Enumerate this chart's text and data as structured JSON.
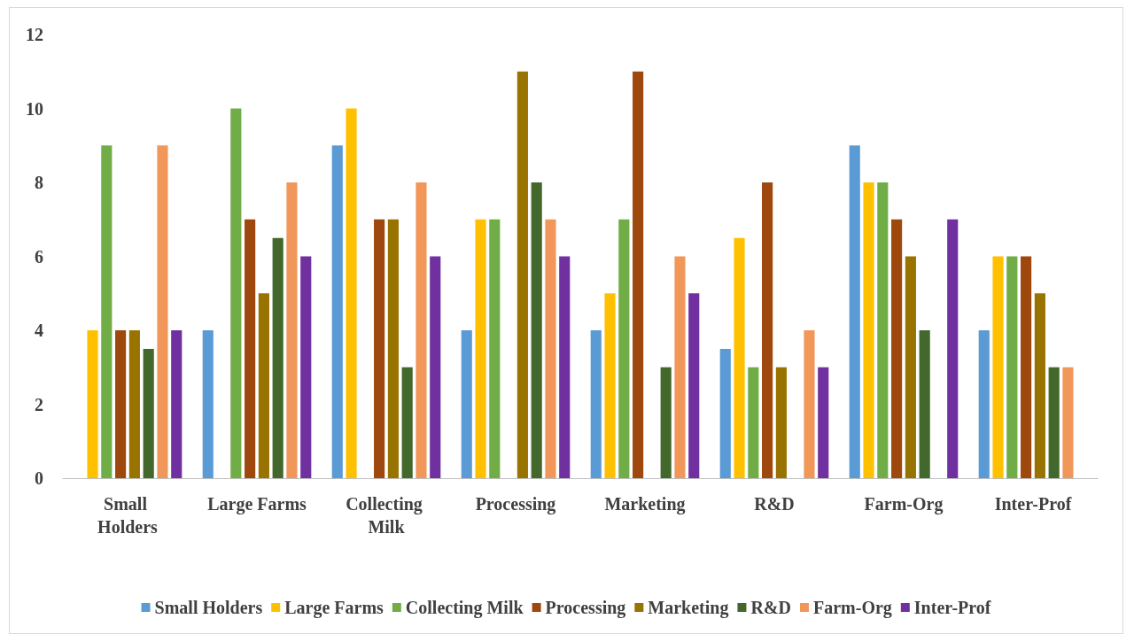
{
  "chart_data": {
    "type": "bar",
    "categories": [
      "Small Holders",
      "Large Farms",
      "Collecting Milk",
      "Processing",
      "Marketing",
      "R&D",
      "Farm-Org",
      "Inter-Prof"
    ],
    "series": [
      {
        "name": "Small Holders",
        "color": "#5b9bd5",
        "values": [
          null,
          4,
          9,
          4,
          4,
          3.5,
          9,
          4
        ]
      },
      {
        "name": "Large Farms",
        "color": "#ffc000",
        "values": [
          4,
          null,
          10,
          7,
          5,
          6.5,
          8,
          6
        ]
      },
      {
        "name": "Collecting Milk",
        "color": "#70ad47",
        "values": [
          9,
          10,
          null,
          7,
          7,
          3,
          8,
          6
        ]
      },
      {
        "name": "Processing",
        "color": "#9e480e",
        "values": [
          4,
          7,
          7,
          null,
          11,
          8,
          7,
          6
        ]
      },
      {
        "name": "Marketing",
        "color": "#997300",
        "values": [
          4,
          5,
          7,
          11,
          null,
          3,
          6,
          5
        ]
      },
      {
        "name": "R&D",
        "color": "#43682b",
        "values": [
          3.5,
          6.5,
          3,
          8,
          3,
          null,
          4,
          3
        ]
      },
      {
        "name": "Farm-Org",
        "color": "#f1975a",
        "values": [
          9,
          8,
          8,
          7,
          6,
          4,
          null,
          3
        ]
      },
      {
        "name": "Inter-Prof",
        "color": "#7030a0",
        "values": [
          4,
          6,
          6,
          6,
          5,
          3,
          7,
          null
        ]
      }
    ],
    "ylim": [
      0,
      12
    ],
    "yticks": [
      0,
      2,
      4,
      6,
      8,
      10,
      12
    ],
    "grid": false,
    "legend": "bottom"
  }
}
